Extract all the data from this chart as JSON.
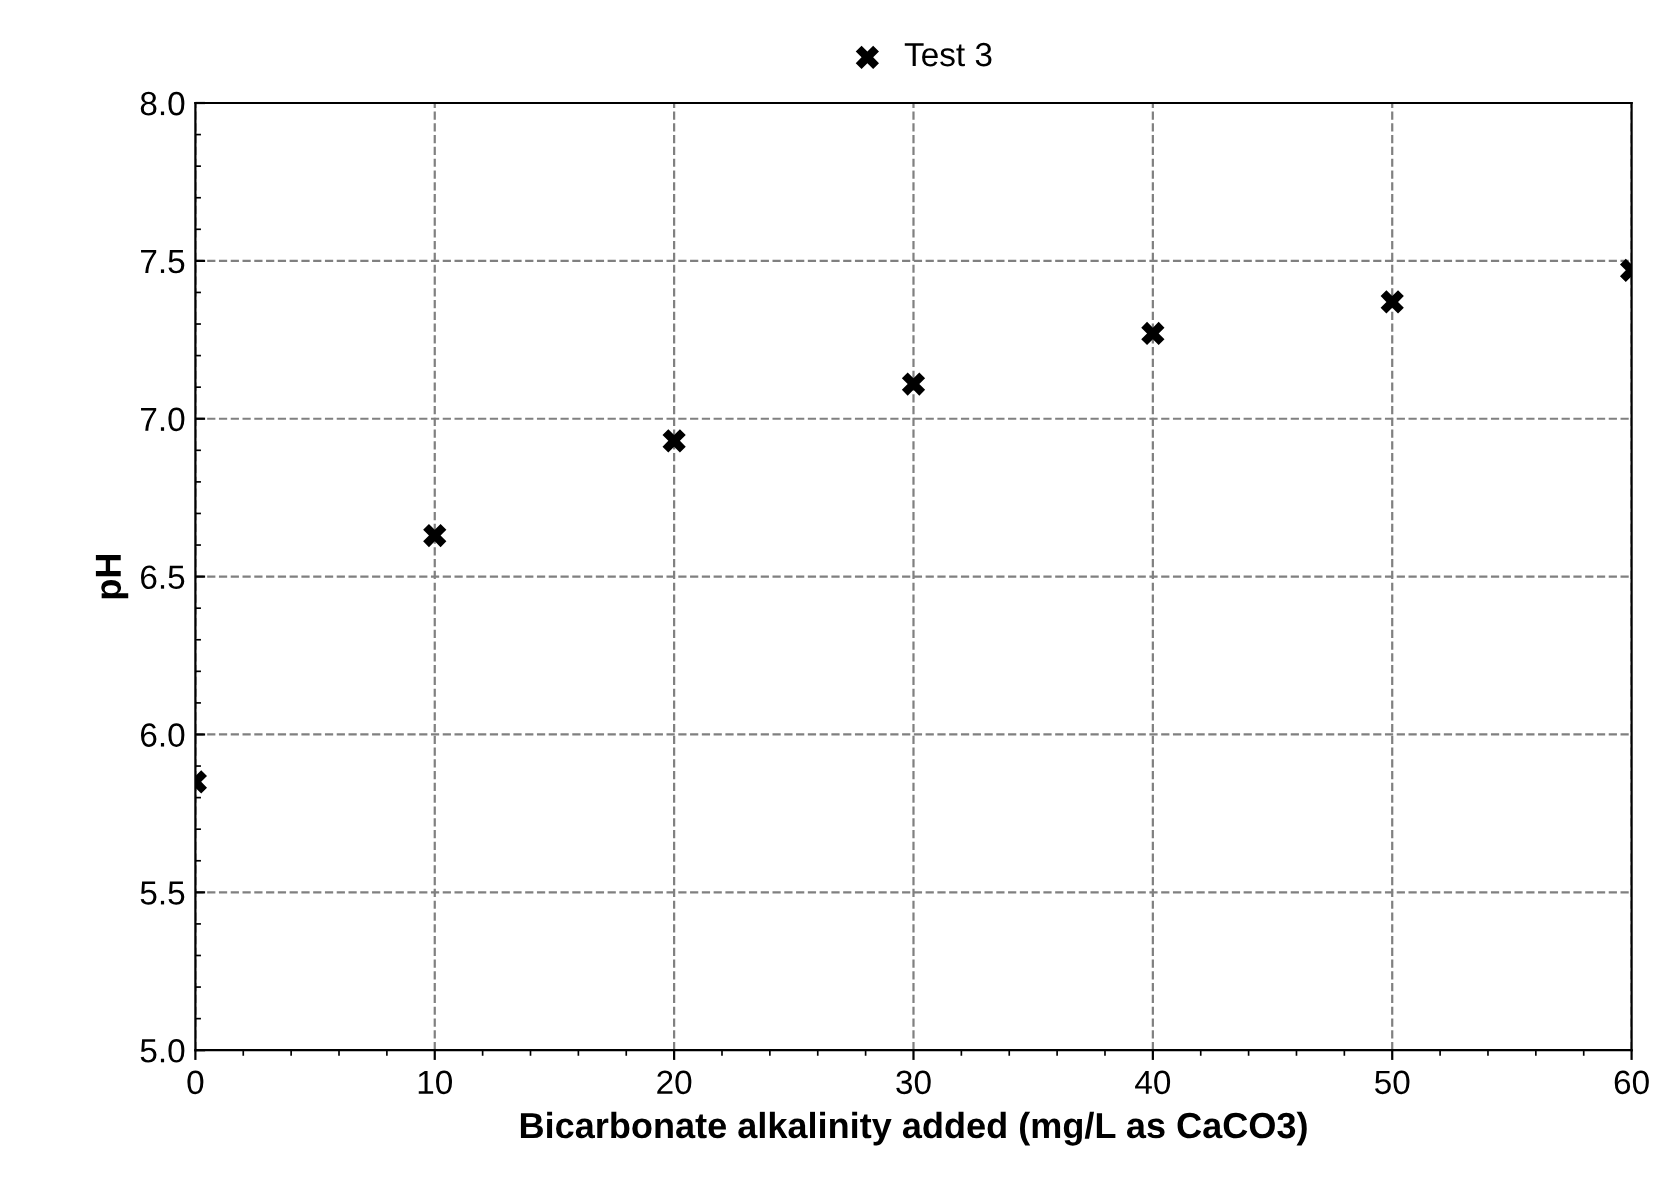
{
  "chart_data": {
    "type": "scatter",
    "xlabel": "Bicarbonate alkalinity added (mg/L as CaCO3)",
    "ylabel": "pH",
    "x": [
      0,
      10,
      20,
      30,
      40,
      50,
      60
    ],
    "series": [
      {
        "name": "Test 3",
        "color": "#000000",
        "values": [
          5.85,
          6.63,
          6.93,
          7.11,
          7.27,
          7.37,
          7.47
        ]
      }
    ],
    "xlim": [
      0,
      60
    ],
    "xticks": [
      0,
      10,
      20,
      30,
      40,
      50,
      60
    ],
    "ylim": [
      5.0,
      8.0
    ],
    "yticks": [
      {
        "value": 5.0,
        "label": "5.0"
      },
      {
        "value": 5.5,
        "label": "5.5"
      },
      {
        "value": 6.0,
        "label": "6.0"
      },
      {
        "value": 6.5,
        "label": "6.5"
      },
      {
        "value": 7.0,
        "label": "7.0"
      },
      {
        "value": 7.5,
        "label": "7.5"
      },
      {
        "value": 8.0,
        "label": "8.0"
      }
    ],
    "grid": true,
    "legend": "top",
    "marker": "cross"
  }
}
